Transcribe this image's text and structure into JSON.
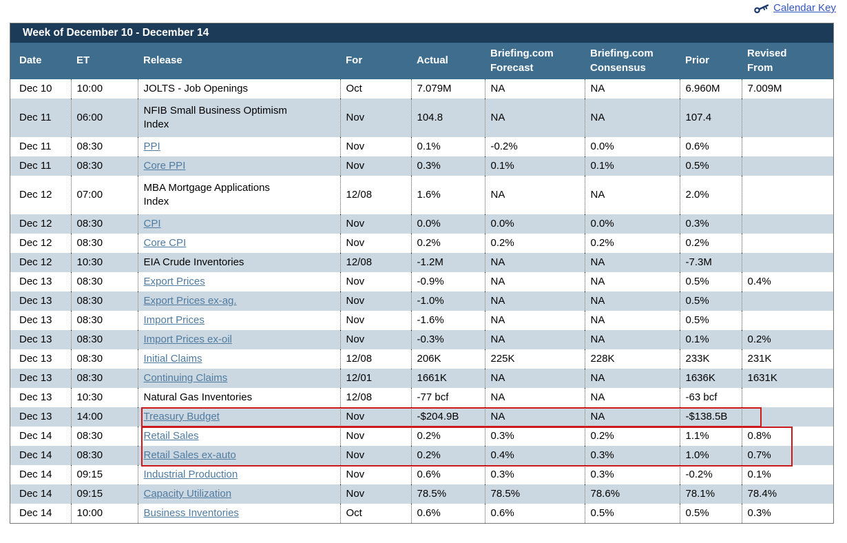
{
  "colors": {
    "title_bar_bg": "#1c3b58",
    "header_bg": "#3f6d8e",
    "header_text": "#ffffff",
    "row_alt_bg": "#ccd8e1",
    "link_color": "#4f7ba1",
    "text_color": "#000000",
    "annotation_red": "#cc1a1a",
    "calendar_key_color": "#3356c0",
    "key_icon_color": "#1d3a6e"
  },
  "topbar": {
    "calendar_key_label": "Calendar Key"
  },
  "table": {
    "title": "Week of December 10 - December 14",
    "columns": [
      {
        "key": "date",
        "label": "Date"
      },
      {
        "key": "et",
        "label": "ET"
      },
      {
        "key": "release",
        "label": "Release"
      },
      {
        "key": "for",
        "label": "For"
      },
      {
        "key": "actual",
        "label": "Actual"
      },
      {
        "key": "forecast",
        "label": "Briefing.com\nForecast"
      },
      {
        "key": "consensus",
        "label": "Briefing.com\nConsensus"
      },
      {
        "key": "prior",
        "label": "Prior"
      },
      {
        "key": "revised",
        "label": "Revised\nFrom"
      }
    ],
    "rows": [
      {
        "date": "Dec 10",
        "et": "10:00",
        "release": "JOLTS - Job Openings",
        "link": false,
        "for": "Oct",
        "actual": "7.079M",
        "forecast": "NA",
        "consensus": "NA",
        "prior": "6.960M",
        "revised": "7.009M"
      },
      {
        "date": "Dec 11",
        "et": "06:00",
        "release": "NFIB Small Business Optimism\nIndex",
        "link": false,
        "tall": true,
        "for": "Nov",
        "actual": "104.8",
        "forecast": "NA",
        "consensus": "NA",
        "prior": "107.4",
        "revised": ""
      },
      {
        "date": "Dec 11",
        "et": "08:30",
        "release": "PPI",
        "link": true,
        "for": "Nov",
        "actual": "0.1%",
        "forecast": "-0.2%",
        "consensus": "0.0%",
        "prior": "0.6%",
        "revised": ""
      },
      {
        "date": "Dec 11",
        "et": "08:30",
        "release": "Core PPI",
        "link": true,
        "for": "Nov",
        "actual": "0.3%",
        "forecast": "0.1%",
        "consensus": "0.1%",
        "prior": "0.5%",
        "revised": ""
      },
      {
        "date": "Dec 12",
        "et": "07:00",
        "release": "MBA Mortgage Applications\nIndex",
        "link": false,
        "tall": true,
        "for": "12/08",
        "actual": "1.6%",
        "forecast": "NA",
        "consensus": "NA",
        "prior": "2.0%",
        "revised": ""
      },
      {
        "date": "Dec 12",
        "et": "08:30",
        "release": "CPI",
        "link": true,
        "for": "Nov",
        "actual": "0.0%",
        "forecast": "0.0%",
        "consensus": "0.0%",
        "prior": "0.3%",
        "revised": ""
      },
      {
        "date": "Dec 12",
        "et": "08:30",
        "release": "Core CPI",
        "link": true,
        "for": "Nov",
        "actual": "0.2%",
        "forecast": "0.2%",
        "consensus": "0.2%",
        "prior": "0.2%",
        "revised": ""
      },
      {
        "date": "Dec 12",
        "et": "10:30",
        "release": "EIA Crude Inventories",
        "link": false,
        "for": "12/08",
        "actual": "-1.2M",
        "forecast": "NA",
        "consensus": "NA",
        "prior": "-7.3M",
        "revised": ""
      },
      {
        "date": "Dec 13",
        "et": "08:30",
        "release": "Export Prices",
        "link": true,
        "for": "Nov",
        "actual": "-0.9%",
        "forecast": "NA",
        "consensus": "NA",
        "prior": "0.5%",
        "revised": "0.4%"
      },
      {
        "date": "Dec 13",
        "et": "08:30",
        "release": "Export Prices ex-ag.",
        "link": true,
        "for": "Nov",
        "actual": "-1.0%",
        "forecast": "NA",
        "consensus": "NA",
        "prior": "0.5%",
        "revised": ""
      },
      {
        "date": "Dec 13",
        "et": "08:30",
        "release": "Import Prices",
        "link": true,
        "for": "Nov",
        "actual": "-1.6%",
        "forecast": "NA",
        "consensus": "NA",
        "prior": "0.5%",
        "revised": ""
      },
      {
        "date": "Dec 13",
        "et": "08:30",
        "release": "Import Prices ex-oil",
        "link": true,
        "for": "Nov",
        "actual": "-0.3%",
        "forecast": "NA",
        "consensus": "NA",
        "prior": "0.1%",
        "revised": "0.2%"
      },
      {
        "date": "Dec 13",
        "et": "08:30",
        "release": "Initial Claims",
        "link": true,
        "for": "12/08",
        "actual": "206K",
        "forecast": "225K",
        "consensus": "228K",
        "prior": "233K",
        "revised": "231K"
      },
      {
        "date": "Dec 13",
        "et": "08:30",
        "release": "Continuing Claims",
        "link": true,
        "for": "12/01",
        "actual": "1661K",
        "forecast": "NA",
        "consensus": "NA",
        "prior": "1636K",
        "revised": "1631K"
      },
      {
        "date": "Dec 13",
        "et": "10:30",
        "release": "Natural Gas Inventories",
        "link": false,
        "for": "12/08",
        "actual": "-77 bcf",
        "forecast": "NA",
        "consensus": "NA",
        "prior": "-63 bcf",
        "revised": ""
      },
      {
        "date": "Dec 13",
        "et": "14:00",
        "release": "Treasury Budget",
        "link": true,
        "for": "Nov",
        "actual": "-$204.9B",
        "forecast": "NA",
        "consensus": "NA",
        "prior": "-$138.5B",
        "revised": ""
      },
      {
        "date": "Dec 14",
        "et": "08:30",
        "release": "Retail Sales",
        "link": true,
        "for": "Nov",
        "actual": "0.2%",
        "forecast": "0.3%",
        "consensus": "0.2%",
        "prior": "1.1%",
        "revised": "0.8%"
      },
      {
        "date": "Dec 14",
        "et": "08:30",
        "release": "Retail Sales ex-auto",
        "link": true,
        "for": "Nov",
        "actual": "0.2%",
        "forecast": "0.4%",
        "consensus": "0.3%",
        "prior": "1.0%",
        "revised": "0.7%"
      },
      {
        "date": "Dec 14",
        "et": "09:15",
        "release": "Industrial Production",
        "link": true,
        "for": "Nov",
        "actual": "0.6%",
        "forecast": "0.3%",
        "consensus": "0.3%",
        "prior": "-0.2%",
        "revised": "0.1%"
      },
      {
        "date": "Dec 14",
        "et": "09:15",
        "release": "Capacity Utilization",
        "link": true,
        "for": "Nov",
        "actual": "78.5%",
        "forecast": "78.5%",
        "consensus": "78.6%",
        "prior": "78.1%",
        "revised": "78.4%"
      },
      {
        "date": "Dec 14",
        "et": "10:00",
        "release": "Business Inventories",
        "link": true,
        "for": "Oct",
        "actual": "0.6%",
        "forecast": "0.6%",
        "consensus": "0.5%",
        "prior": "0.5%",
        "revised": "0.3%"
      }
    ]
  },
  "annotations": [
    {
      "name": "treasury-budget-highlight"
    },
    {
      "name": "retail-sales-highlight"
    }
  ]
}
